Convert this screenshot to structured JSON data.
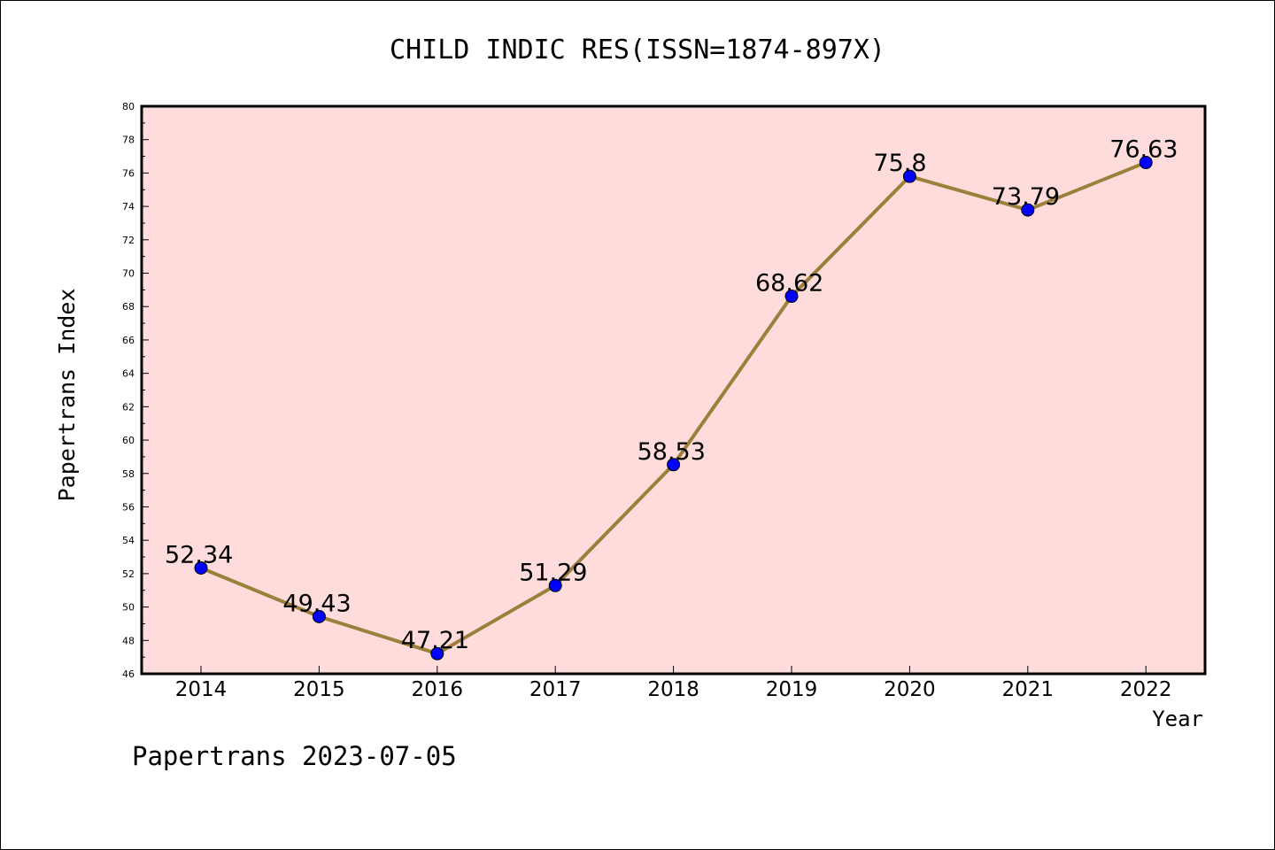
{
  "chart_data": {
    "type": "line",
    "title": "CHILD INDIC RES(ISSN=1874-897X)",
    "xlabel": "Year",
    "ylabel": "Papertrans Index",
    "categories": [
      "2014",
      "2015",
      "2016",
      "2017",
      "2018",
      "2019",
      "2020",
      "2021",
      "2022"
    ],
    "values": [
      52.34,
      49.43,
      47.21,
      51.29,
      58.53,
      68.62,
      75.8,
      73.79,
      76.63
    ],
    "data_labels": [
      "52.34",
      "49.43",
      "47.21",
      "51.29",
      "58.53",
      "68.62",
      "75.8",
      "73.79",
      "76.63"
    ],
    "y_ticks": [
      "46",
      "48",
      "50",
      "52",
      "54",
      "56",
      "58",
      "60",
      "62",
      "64",
      "66",
      "68",
      "70",
      "72",
      "74",
      "76",
      "78",
      "80"
    ],
    "ylim": [
      46,
      80
    ],
    "grid": false,
    "colors": {
      "plot_background": "#ffdcdc",
      "line": "#9b7f3a",
      "marker": "#0000ff"
    }
  },
  "footer": {
    "stamp": "Papertrans 2023-07-05"
  }
}
